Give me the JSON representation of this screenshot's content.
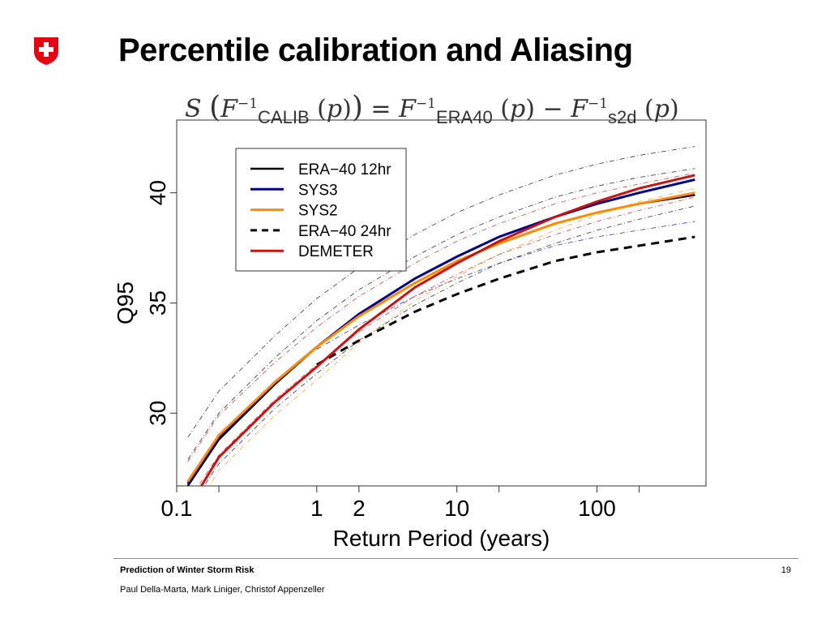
{
  "slide": {
    "title": "Percentile calibration and Aliasing",
    "footer_title": "Prediction of Winter Storm Risk",
    "footer_authors": "Paul Della-Marta, Mark Liniger, Christof Appenzeller",
    "page_number": "19",
    "logo_icon": "swiss-cross-icon",
    "logo_color": "#e30613"
  },
  "formula": {
    "S": "S",
    "F": "F",
    "p": "p",
    "sup": "−1",
    "calib": "CALIB",
    "era40": "ERA40",
    "s2d": "s2d",
    "equals": "=",
    "minus": "−"
  },
  "chart_data": {
    "type": "line",
    "x_scale": "log",
    "xlabel": "Return Period (years)",
    "ylabel": "Q95",
    "xlim": [
      0.1,
      600
    ],
    "ylim": [
      26.7,
      43.3
    ],
    "x_ticks": [
      {
        "value": 0.1,
        "label": "0.1"
      },
      {
        "value": 0.2,
        "label": ""
      },
      {
        "value": 1,
        "label": "1"
      },
      {
        "value": 2,
        "label": "2"
      },
      {
        "value": 10,
        "label": "10"
      },
      {
        "value": 20,
        "label": ""
      },
      {
        "value": 100,
        "label": "100"
      },
      {
        "value": 200,
        "label": ""
      }
    ],
    "y_ticks": [
      30,
      35,
      40
    ],
    "legend_position": "top-left",
    "series": [
      {
        "name": "ERA−40 12hr",
        "color": "#000000",
        "dash": "solid",
        "width": 2.5,
        "x": [
          0.12,
          0.2,
          0.5,
          1,
          2,
          5,
          10,
          20,
          50,
          100,
          200,
          500
        ],
        "y": [
          26.7,
          28.8,
          31.3,
          33.0,
          34.4,
          35.9,
          36.9,
          37.7,
          38.6,
          39.1,
          39.5,
          39.9
        ]
      },
      {
        "name": "SYS3",
        "color": "#00008b",
        "dash": "solid",
        "width": 3,
        "x": [
          0.12,
          0.2,
          0.5,
          1,
          2,
          5,
          10,
          20,
          50,
          100,
          200,
          500
        ],
        "y": [
          26.8,
          28.9,
          31.4,
          33.0,
          34.5,
          36.1,
          37.1,
          38.0,
          38.9,
          39.5,
          40.0,
          40.6
        ]
      },
      {
        "name": "SYS2",
        "color": "#ff8c00",
        "dash": "solid",
        "width": 3,
        "x": [
          0.12,
          0.2,
          0.5,
          1,
          2,
          5,
          10,
          20,
          50,
          100,
          200,
          500
        ],
        "y": [
          26.9,
          29.0,
          31.4,
          33.0,
          34.4,
          35.9,
          36.9,
          37.7,
          38.6,
          39.1,
          39.5,
          40.0
        ]
      },
      {
        "name": "ERA−40 24hr",
        "color": "#000000",
        "dash": "dashed",
        "width": 3,
        "x": [
          1,
          2,
          5,
          10,
          20,
          50,
          100,
          200,
          500
        ],
        "y": [
          32.2,
          33.3,
          34.6,
          35.4,
          36.1,
          36.9,
          37.3,
          37.6,
          38.0
        ]
      },
      {
        "name": "DEMETER",
        "color": "#cc1111",
        "dash": "solid",
        "width": 3,
        "x": [
          0.15,
          0.2,
          0.5,
          1,
          2,
          5,
          10,
          20,
          50,
          100,
          200,
          500
        ],
        "y": [
          26.7,
          28.0,
          30.5,
          32.1,
          33.8,
          35.7,
          36.8,
          37.8,
          38.9,
          39.6,
          40.2,
          40.8
        ]
      }
    ]
  }
}
